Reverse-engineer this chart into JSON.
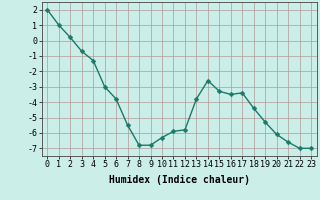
{
  "x": [
    0,
    1,
    2,
    3,
    4,
    5,
    6,
    7,
    8,
    9,
    10,
    11,
    12,
    13,
    14,
    15,
    16,
    17,
    18,
    19,
    20,
    21,
    22,
    23
  ],
  "y": [
    2.0,
    1.0,
    0.2,
    -0.7,
    -1.3,
    -3.0,
    -3.8,
    -5.5,
    -6.8,
    -6.8,
    -6.3,
    -5.9,
    -5.8,
    -3.8,
    -2.6,
    -3.3,
    -3.5,
    -3.4,
    -4.4,
    -5.3,
    -6.1,
    -6.6,
    -7.0,
    -7.0
  ],
  "line_color": "#1a7a6a",
  "marker": "D",
  "marker_size": 2.5,
  "line_width": 1.0,
  "bg_color": "#cceee8",
  "grid_color": "#b09898",
  "xlabel": "Humidex (Indice chaleur)",
  "ylim": [
    -7.5,
    2.5
  ],
  "xlim": [
    -0.5,
    23.5
  ],
  "yticks": [
    2,
    1,
    0,
    -1,
    -2,
    -3,
    -4,
    -5,
    -6,
    -7
  ],
  "xtick_labels": [
    "0",
    "1",
    "2",
    "3",
    "4",
    "5",
    "6",
    "7",
    "8",
    "9",
    "10",
    "11",
    "12",
    "13",
    "14",
    "15",
    "16",
    "17",
    "18",
    "19",
    "20",
    "21",
    "22",
    "23"
  ],
  "tick_fontsize": 6.0,
  "xlabel_fontsize": 7.0
}
